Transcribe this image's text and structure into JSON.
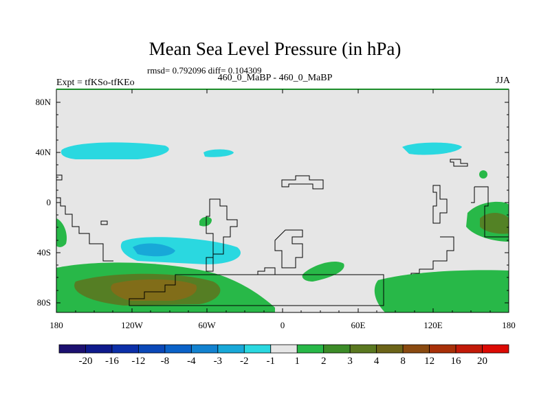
{
  "title": "Mean Sea Level Pressure (in hPa)",
  "stats": "rmsd= 0.792096 diff= 0.104309",
  "experiment_label": "Expt = tfKSo-tfKEo",
  "experiments": "460_0_MaBP - 460_0_MaBP",
  "season": "JJA",
  "axes": {
    "y_labels": [
      "80N",
      "40N",
      "0",
      "40S",
      "80S"
    ],
    "x_labels": [
      "180",
      "120W",
      "60W",
      "0",
      "60E",
      "120E",
      "180"
    ]
  },
  "colorbar": {
    "labels": [
      "-20",
      "-16",
      "-12",
      "-8",
      "-4",
      "-3",
      "-2",
      "-1",
      "1",
      "2",
      "3",
      "4",
      "8",
      "12",
      "16",
      "20"
    ],
    "colors": [
      "#1c1070",
      "#0e1a8c",
      "#0c2fa8",
      "#0a48b8",
      "#0a62c8",
      "#1282d0",
      "#18a8d8",
      "#2ad8e0",
      "#e6e6e6",
      "#28b848",
      "#3c8c28",
      "#5a7820",
      "#6c6418",
      "#8a4a10",
      "#a83008",
      "#c21a08",
      "#dc0a04"
    ]
  },
  "colors": {
    "neutral": "#e6e6e6",
    "light_green": "#28b848",
    "dark_green": "#5a7820",
    "olive": "#8a6a18",
    "cyan": "#2ad8e0",
    "blue": "#18a8d8",
    "frame": "#1a8c28"
  }
}
